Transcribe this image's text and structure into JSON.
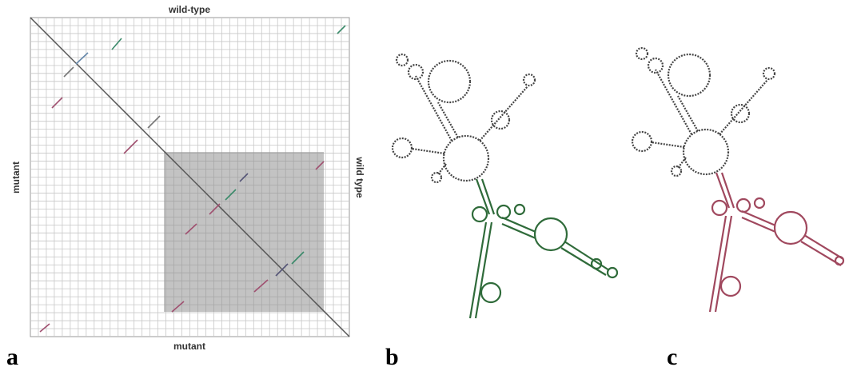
{
  "panel_a": {
    "top_label": "wild-type",
    "left_label": "mutant",
    "right_label": "wild type",
    "bottom_label": "mutant",
    "panel_label": "a"
  },
  "panel_b": {
    "panel_label": "b"
  },
  "panel_c": {
    "panel_label": "c"
  }
}
